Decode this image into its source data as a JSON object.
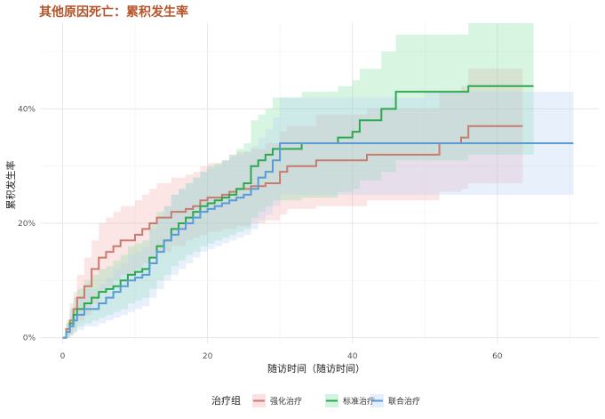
{
  "chart_data": {
    "type": "line",
    "title": "其他原因死亡：累积发生率",
    "xlabel": "随访时间（随访时间）",
    "ylabel": "累积发生率",
    "xlim": [
      -3,
      74
    ],
    "ylim": [
      -1,
      55
    ],
    "xticks": [
      0,
      20,
      40,
      60
    ],
    "yticks": [
      0,
      20,
      40
    ],
    "ytick_labels": [
      "0%",
      "20%",
      "40%"
    ],
    "grid": true,
    "legend_title": "治疗组",
    "legend_position": "bottom",
    "series": [
      {
        "name": "强化治疗",
        "color": "#c97b6f",
        "fill": "#f4a9a8",
        "step": true,
        "points": [
          [
            0,
            0
          ],
          [
            0.5,
            1.5
          ],
          [
            1,
            3
          ],
          [
            1.5,
            5
          ],
          [
            2,
            7
          ],
          [
            3,
            9
          ],
          [
            4,
            12
          ],
          [
            5,
            14
          ],
          [
            6,
            15
          ],
          [
            7,
            16
          ],
          [
            8,
            17
          ],
          [
            10,
            18
          ],
          [
            11,
            19
          ],
          [
            12,
            20
          ],
          [
            13,
            21
          ],
          [
            15,
            22
          ],
          [
            17,
            22.5
          ],
          [
            18,
            23
          ],
          [
            19,
            24
          ],
          [
            20,
            24.5
          ],
          [
            22,
            25
          ],
          [
            23,
            25.5
          ],
          [
            24,
            26
          ],
          [
            26,
            26.5
          ],
          [
            28,
            27
          ],
          [
            30,
            29
          ],
          [
            31,
            30
          ],
          [
            35,
            31
          ],
          [
            42,
            32
          ],
          [
            52,
            34
          ],
          [
            55,
            35
          ],
          [
            56,
            37
          ],
          [
            63.5,
            37
          ]
        ],
        "lower": [
          [
            0,
            0
          ],
          [
            0.5,
            0
          ],
          [
            1,
            0.5
          ],
          [
            1.5,
            1.5
          ],
          [
            2,
            3
          ],
          [
            3,
            4
          ],
          [
            4,
            6
          ],
          [
            5,
            8
          ],
          [
            6,
            9
          ],
          [
            7,
            10
          ],
          [
            8,
            11
          ],
          [
            10,
            12
          ],
          [
            11,
            13
          ],
          [
            12,
            14
          ],
          [
            13,
            15
          ],
          [
            15,
            16
          ],
          [
            17,
            17
          ],
          [
            18,
            17.5
          ],
          [
            19,
            18
          ],
          [
            20,
            18.5
          ],
          [
            22,
            19
          ],
          [
            23,
            19
          ],
          [
            24,
            19.5
          ],
          [
            26,
            20
          ],
          [
            28,
            20.5
          ],
          [
            30,
            21.5
          ],
          [
            31,
            22.5
          ],
          [
            35,
            23
          ],
          [
            42,
            24
          ],
          [
            52,
            25.5
          ],
          [
            55,
            26
          ],
          [
            56,
            27
          ],
          [
            63.5,
            27
          ]
        ],
        "upper": [
          [
            0,
            0
          ],
          [
            0.5,
            3
          ],
          [
            1,
            6
          ],
          [
            1.5,
            8
          ],
          [
            2,
            11
          ],
          [
            3,
            14
          ],
          [
            4,
            17
          ],
          [
            5,
            20
          ],
          [
            6,
            21
          ],
          [
            7,
            22
          ],
          [
            8,
            23
          ],
          [
            10,
            24
          ],
          [
            11,
            25
          ],
          [
            12,
            26
          ],
          [
            13,
            27
          ],
          [
            15,
            28
          ],
          [
            17,
            28.5
          ],
          [
            18,
            29
          ],
          [
            19,
            30
          ],
          [
            20,
            30.5
          ],
          [
            22,
            31
          ],
          [
            23,
            32
          ],
          [
            24,
            32.5
          ],
          [
            26,
            33
          ],
          [
            28,
            34
          ],
          [
            30,
            36
          ],
          [
            31,
            37
          ],
          [
            35,
            39
          ],
          [
            42,
            40
          ],
          [
            52,
            43
          ],
          [
            55,
            44
          ],
          [
            56,
            47
          ],
          [
            63.5,
            47
          ]
        ]
      },
      {
        "name": "标准治疗",
        "color": "#2ea84f",
        "fill": "#7fdea0",
        "step": true,
        "points": [
          [
            0,
            0
          ],
          [
            0.5,
            1
          ],
          [
            1,
            2.5
          ],
          [
            1.5,
            4
          ],
          [
            2,
            5
          ],
          [
            3,
            6
          ],
          [
            4,
            7
          ],
          [
            5,
            8
          ],
          [
            6,
            8.5
          ],
          [
            7,
            9
          ],
          [
            8,
            10
          ],
          [
            9,
            11
          ],
          [
            10,
            11.5
          ],
          [
            11,
            12
          ],
          [
            12,
            14
          ],
          [
            13,
            16
          ],
          [
            14,
            17
          ],
          [
            15,
            19
          ],
          [
            16,
            20
          ],
          [
            17,
            21
          ],
          [
            18,
            22
          ],
          [
            19,
            23
          ],
          [
            20,
            23.5
          ],
          [
            21,
            24
          ],
          [
            22,
            24.5
          ],
          [
            23,
            25
          ],
          [
            24,
            26
          ],
          [
            25,
            27
          ],
          [
            26,
            30
          ],
          [
            27,
            31
          ],
          [
            28,
            32
          ],
          [
            29,
            33
          ],
          [
            33,
            34
          ],
          [
            38,
            35
          ],
          [
            40,
            36
          ],
          [
            41,
            38
          ],
          [
            44,
            40
          ],
          [
            46,
            43
          ],
          [
            56,
            44
          ],
          [
            65,
            44
          ]
        ],
        "lower": [
          [
            0,
            0
          ],
          [
            0.5,
            0
          ],
          [
            1,
            0.5
          ],
          [
            1.5,
            1
          ],
          [
            2,
            2
          ],
          [
            3,
            2.5
          ],
          [
            4,
            3
          ],
          [
            5,
            3.5
          ],
          [
            6,
            4
          ],
          [
            7,
            4.5
          ],
          [
            8,
            5
          ],
          [
            9,
            6
          ],
          [
            10,
            6.5
          ],
          [
            11,
            7
          ],
          [
            12,
            8.5
          ],
          [
            13,
            10
          ],
          [
            14,
            11
          ],
          [
            15,
            12.5
          ],
          [
            16,
            13.5
          ],
          [
            17,
            14.5
          ],
          [
            18,
            15
          ],
          [
            19,
            16
          ],
          [
            20,
            16.5
          ],
          [
            21,
            17
          ],
          [
            22,
            17.5
          ],
          [
            23,
            18
          ],
          [
            24,
            18.5
          ],
          [
            25,
            19
          ],
          [
            26,
            21
          ],
          [
            27,
            22
          ],
          [
            28,
            23
          ],
          [
            29,
            24
          ],
          [
            33,
            24.5
          ],
          [
            38,
            25.5
          ],
          [
            40,
            26
          ],
          [
            41,
            27.5
          ],
          [
            44,
            29
          ],
          [
            46,
            31
          ],
          [
            56,
            32
          ],
          [
            65,
            32
          ]
        ],
        "upper": [
          [
            0,
            0
          ],
          [
            0.5,
            2.5
          ],
          [
            1,
            5
          ],
          [
            1.5,
            7
          ],
          [
            2,
            8.5
          ],
          [
            3,
            10
          ],
          [
            4,
            11
          ],
          [
            5,
            12
          ],
          [
            6,
            12.5
          ],
          [
            7,
            13.5
          ],
          [
            8,
            14.5
          ],
          [
            9,
            16
          ],
          [
            10,
            16.5
          ],
          [
            11,
            17
          ],
          [
            12,
            20
          ],
          [
            13,
            22
          ],
          [
            14,
            23
          ],
          [
            15,
            25
          ],
          [
            16,
            26
          ],
          [
            17,
            27
          ],
          [
            18,
            28
          ],
          [
            19,
            29
          ],
          [
            20,
            30
          ],
          [
            21,
            30.5
          ],
          [
            22,
            31
          ],
          [
            23,
            32
          ],
          [
            24,
            33
          ],
          [
            25,
            34
          ],
          [
            26,
            38
          ],
          [
            27,
            39
          ],
          [
            28,
            40
          ],
          [
            29,
            42
          ],
          [
            33,
            43
          ],
          [
            38,
            44
          ],
          [
            40,
            45
          ],
          [
            41,
            47
          ],
          [
            44,
            50
          ],
          [
            46,
            53
          ],
          [
            56,
            55
          ],
          [
            65,
            55
          ]
        ]
      },
      {
        "name": "联合治疗",
        "color": "#5b9bd5",
        "fill": "#b3cef5",
        "step": true,
        "points": [
          [
            0,
            0
          ],
          [
            0.5,
            1
          ],
          [
            1,
            2
          ],
          [
            1.5,
            3
          ],
          [
            2,
            4
          ],
          [
            3,
            5
          ],
          [
            5,
            6
          ],
          [
            6,
            7
          ],
          [
            7,
            8
          ],
          [
            8,
            9
          ],
          [
            9,
            10
          ],
          [
            10,
            10.5
          ],
          [
            11,
            11
          ],
          [
            12,
            13
          ],
          [
            13,
            15
          ],
          [
            14,
            17
          ],
          [
            15,
            18
          ],
          [
            16,
            19
          ],
          [
            17,
            20
          ],
          [
            18,
            21
          ],
          [
            19,
            22
          ],
          [
            20,
            22.5
          ],
          [
            21,
            23
          ],
          [
            22,
            23.5
          ],
          [
            23,
            24
          ],
          [
            24,
            24.5
          ],
          [
            25,
            25
          ],
          [
            26,
            26
          ],
          [
            27,
            28
          ],
          [
            28,
            29
          ],
          [
            29,
            31
          ],
          [
            30,
            34
          ],
          [
            40,
            34
          ],
          [
            50,
            34
          ],
          [
            60,
            34
          ],
          [
            70.5,
            34
          ]
        ],
        "lower": [
          [
            0,
            0
          ],
          [
            0.5,
            0
          ],
          [
            1,
            0.3
          ],
          [
            1.5,
            0.8
          ],
          [
            2,
            1.3
          ],
          [
            3,
            2
          ],
          [
            5,
            2.5
          ],
          [
            6,
            3
          ],
          [
            7,
            3.5
          ],
          [
            8,
            4
          ],
          [
            9,
            4.5
          ],
          [
            10,
            5
          ],
          [
            11,
            5.5
          ],
          [
            12,
            7
          ],
          [
            13,
            8.5
          ],
          [
            14,
            10
          ],
          [
            15,
            11
          ],
          [
            16,
            12
          ],
          [
            17,
            13
          ],
          [
            18,
            14
          ],
          [
            19,
            15
          ],
          [
            20,
            15.5
          ],
          [
            21,
            16
          ],
          [
            22,
            16.5
          ],
          [
            23,
            17
          ],
          [
            24,
            17.5
          ],
          [
            25,
            18
          ],
          [
            26,
            19
          ],
          [
            27,
            20.5
          ],
          [
            28,
            21.5
          ],
          [
            29,
            23
          ],
          [
            30,
            25
          ],
          [
            40,
            25
          ],
          [
            50,
            25
          ],
          [
            60,
            25
          ],
          [
            70.5,
            25
          ]
        ],
        "upper": [
          [
            0,
            0
          ],
          [
            0.5,
            2.5
          ],
          [
            1,
            4
          ],
          [
            1.5,
            5.5
          ],
          [
            2,
            7
          ],
          [
            3,
            8.5
          ],
          [
            5,
            9.5
          ],
          [
            6,
            10.5
          ],
          [
            7,
            12
          ],
          [
            8,
            13
          ],
          [
            9,
            14.5
          ],
          [
            10,
            15
          ],
          [
            11,
            16
          ],
          [
            12,
            19
          ],
          [
            13,
            21
          ],
          [
            14,
            23
          ],
          [
            15,
            25
          ],
          [
            16,
            26
          ],
          [
            17,
            27
          ],
          [
            18,
            28
          ],
          [
            19,
            29
          ],
          [
            20,
            29.5
          ],
          [
            21,
            30
          ],
          [
            22,
            31
          ],
          [
            23,
            31.5
          ],
          [
            24,
            32
          ],
          [
            25,
            32.5
          ],
          [
            26,
            33.5
          ],
          [
            27,
            35
          ],
          [
            28,
            36.5
          ],
          [
            29,
            38.5
          ],
          [
            30,
            42
          ],
          [
            40,
            42
          ],
          [
            50,
            43
          ],
          [
            60,
            43
          ],
          [
            70.5,
            43
          ]
        ]
      }
    ]
  }
}
